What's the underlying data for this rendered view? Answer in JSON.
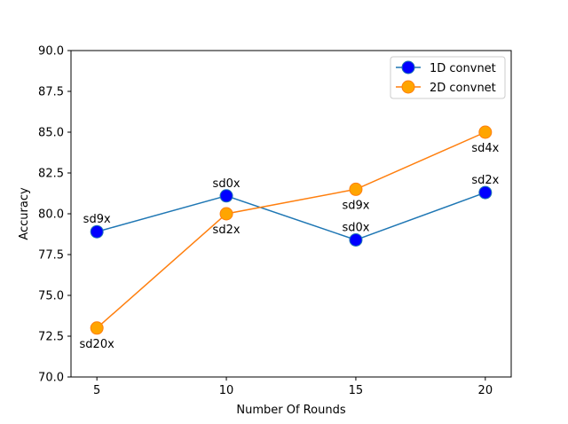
{
  "chart_data": {
    "type": "line",
    "xlabel": "Number Of Rounds",
    "ylabel": "Accuracy",
    "x": [
      5,
      10,
      15,
      20
    ],
    "xlim": [
      4,
      21
    ],
    "ylim": [
      70.0,
      90.0
    ],
    "xticks": [
      "5",
      "10",
      "15",
      "20"
    ],
    "yticks": [
      "70.0",
      "72.5",
      "75.0",
      "77.5",
      "80.0",
      "82.5",
      "85.0",
      "87.5",
      "90.0"
    ],
    "grid": false,
    "legend_position": "top-right",
    "series": [
      {
        "name": "1D convnet",
        "line_color": "#1f77b4",
        "marker_color": "#0000ff",
        "values": [
          78.9,
          81.1,
          78.4,
          81.3
        ],
        "point_labels": [
          "sd9x",
          "sd0x",
          "sd0x",
          "sd2x"
        ],
        "label_side": [
          "above",
          "above",
          "above",
          "above"
        ]
      },
      {
        "name": "2D convnet",
        "line_color": "#ff7f0e",
        "marker_color": "#ffa500",
        "values": [
          73.0,
          80.0,
          81.5,
          85.0
        ],
        "point_labels": [
          "sd20x",
          "sd2x",
          "sd9x",
          "sd4x"
        ],
        "label_side": [
          "below",
          "below",
          "below",
          "below"
        ]
      }
    ]
  }
}
